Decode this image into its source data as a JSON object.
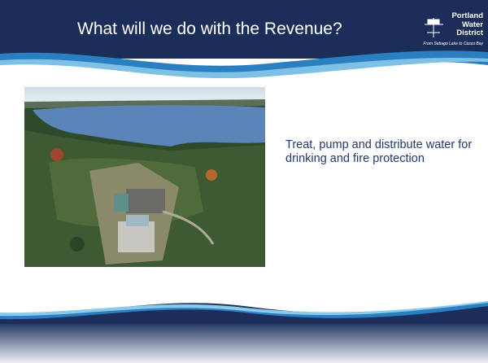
{
  "header": {
    "title": "What will we do with the Revenue?",
    "logo": {
      "lines": [
        "Portland",
        "Water",
        "District"
      ],
      "tagline": "From Sebago Lake to Casco Bay"
    }
  },
  "content": {
    "text": "Treat, pump and distribute water for drinking and fire protection"
  }
}
